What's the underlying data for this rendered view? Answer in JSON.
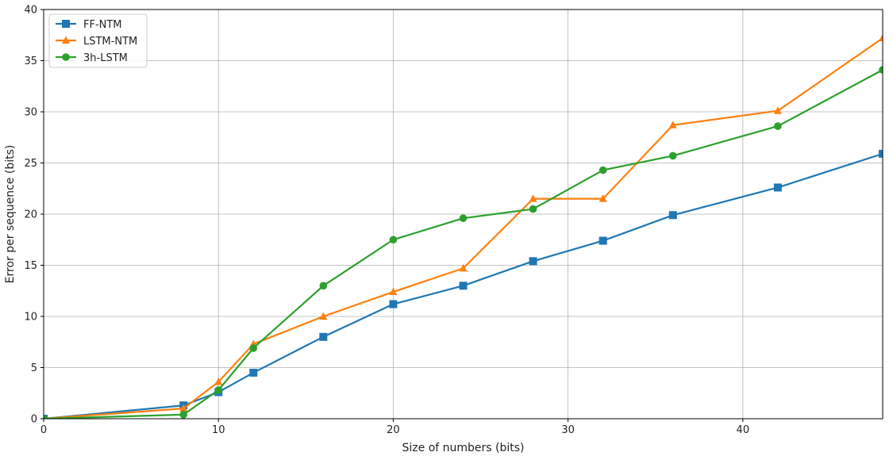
{
  "chart_data": {
    "type": "line",
    "xlabel": "Size of numbers (bits)",
    "ylabel": "Error per sequence (bits)",
    "xlim": [
      0,
      48
    ],
    "ylim": [
      0,
      40
    ],
    "xticks": [
      0,
      10,
      20,
      30,
      40
    ],
    "yticks": [
      0,
      5,
      10,
      15,
      20,
      25,
      30,
      35,
      40
    ],
    "grid": true,
    "legend_position": "top-left",
    "series": [
      {
        "name": "FF-NTM",
        "color": "#1f77b4",
        "marker": "square",
        "x": [
          0,
          8,
          10,
          12,
          16,
          20,
          24,
          28,
          32,
          36,
          42,
          48
        ],
        "y": [
          0.0,
          1.3,
          2.6,
          4.5,
          8.0,
          11.2,
          13.0,
          15.4,
          17.4,
          19.9,
          22.6,
          25.9
        ]
      },
      {
        "name": "LSTM-NTM",
        "color": "#ff7f0e",
        "marker": "triangle",
        "x": [
          0,
          8,
          10,
          12,
          16,
          20,
          24,
          28,
          32,
          36,
          42,
          48
        ],
        "y": [
          0.0,
          1.0,
          3.6,
          7.3,
          10.0,
          12.4,
          14.7,
          21.5,
          21.5,
          28.7,
          30.1,
          37.2
        ]
      },
      {
        "name": "3h-LSTM",
        "color": "#2ca02c",
        "marker": "circle",
        "x": [
          0,
          8,
          10,
          12,
          16,
          20,
          24,
          28,
          32,
          36,
          42,
          48
        ],
        "y": [
          0.0,
          0.4,
          2.8,
          6.9,
          13.0,
          17.5,
          19.6,
          20.5,
          24.3,
          25.7,
          28.6,
          34.1
        ]
      }
    ]
  }
}
